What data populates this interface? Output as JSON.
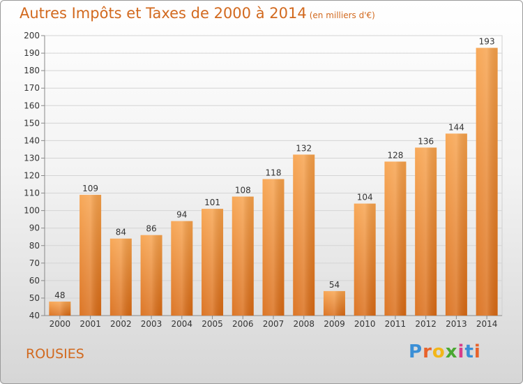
{
  "chart_data": {
    "type": "bar",
    "title": "Autres Impôts et Taxes de 2000 à 2014",
    "subtitle": "(en milliers d'€)",
    "categories": [
      "2000",
      "2001",
      "2002",
      "2003",
      "2004",
      "2005",
      "2006",
      "2007",
      "2008",
      "2009",
      "2010",
      "2011",
      "2012",
      "2013",
      "2014"
    ],
    "values": [
      48,
      109,
      84,
      86,
      94,
      101,
      108,
      118,
      132,
      54,
      104,
      128,
      136,
      144,
      193
    ],
    "ylim": [
      40,
      200
    ],
    "yticks": [
      40,
      50,
      60,
      70,
      80,
      90,
      100,
      110,
      120,
      130,
      140,
      150,
      160,
      170,
      180,
      190,
      200
    ],
    "xlabel": "",
    "ylabel": "",
    "grid": true,
    "bar_color": "#f0882a"
  },
  "place_name": "ROUSIES",
  "logo_text": "Proxiti",
  "colors": {
    "title": "#d2691e",
    "grid": "#d0d0d0"
  }
}
